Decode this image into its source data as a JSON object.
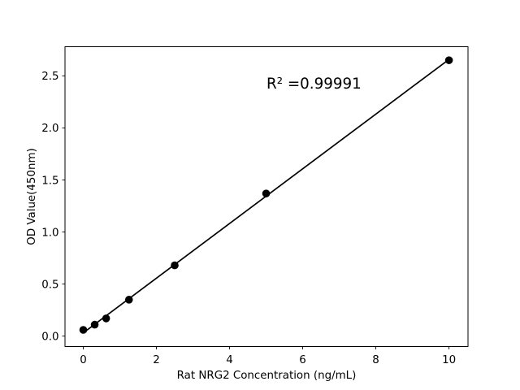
{
  "chart_data": {
    "type": "scatter",
    "title": "",
    "xlabel": "Rat NRG2 Concentration (ng/mL)",
    "ylabel": "OD Value(450nm)",
    "x": [
      0,
      0.3125,
      0.625,
      1.25,
      2.5,
      5,
      10
    ],
    "y": [
      0.06,
      0.11,
      0.17,
      0.35,
      0.68,
      1.37,
      2.65
    ],
    "fit_line": {
      "type": "linear",
      "r_squared": 0.99991
    },
    "annotation": {
      "text": "R² =0.99991"
    },
    "xlim": [
      -0.5,
      10.52
    ],
    "ylim": [
      -0.1,
      2.78
    ],
    "xticks": [
      0,
      2,
      4,
      6,
      8,
      10
    ],
    "xtick_labels": [
      "0",
      "2",
      "4",
      "6",
      "8",
      "10"
    ],
    "yticks": [
      0.0,
      0.5,
      1.0,
      1.5,
      2.0,
      2.5
    ],
    "ytick_labels": [
      "0.0",
      "0.5",
      "1.0",
      "1.5",
      "2.0",
      "2.5"
    ],
    "grid": false,
    "legend": null,
    "colors": {
      "line": "#000000",
      "marker": "#000000",
      "text": "#000000",
      "background": "#ffffff"
    }
  }
}
